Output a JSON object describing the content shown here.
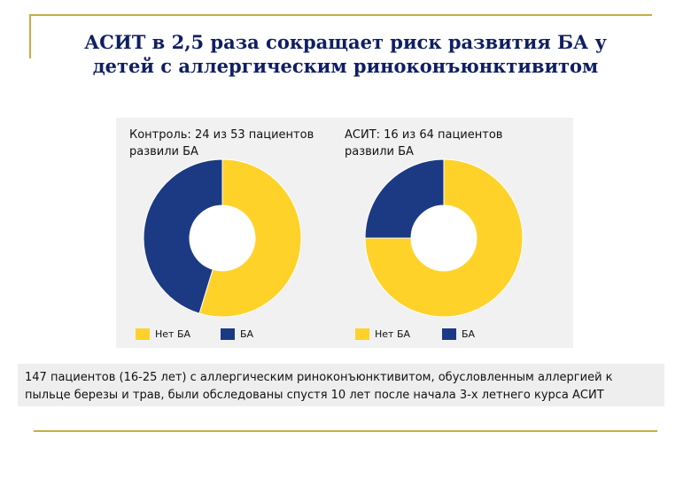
{
  "slide": {
    "title": "АСИТ в 2,5 раза сокращает риск развития БА у детей с аллергическим риноконъюнктивитом",
    "caption": "147 пациентов (16-25 лет) с аллергическим риноконъюнктивитом, обусловленным аллергией к пыльце березы и трав, были обследованы спустя 10 лет после начала 3-х летнего курса АСИТ",
    "accent_color": "#c8ad3e"
  },
  "chart_data": [
    {
      "type": "pie",
      "title": "Контроль: 24 из 53 пациентов развили БА",
      "categories": [
        "Нет БА",
        "БА"
      ],
      "values": [
        29,
        24
      ],
      "colors": [
        "#ffd22a",
        "#1c3a84"
      ]
    },
    {
      "type": "pie",
      "title": "АСИТ: 16 из 64 пациентов развили БА",
      "categories": [
        "Нет БА",
        "БА"
      ],
      "values": [
        48,
        16
      ],
      "colors": [
        "#ffd22a",
        "#1c3a84"
      ]
    }
  ]
}
